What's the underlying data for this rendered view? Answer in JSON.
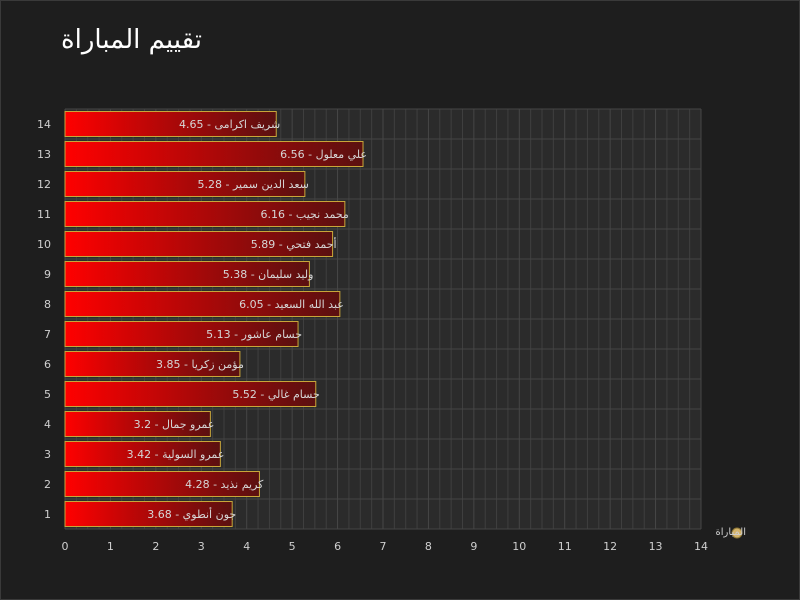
{
  "title": "تقييم المباراة",
  "chart_data": {
    "type": "bar",
    "orientation": "horizontal",
    "title": "تقييم المباراة",
    "categories": [
      "1",
      "2",
      "3",
      "4",
      "5",
      "6",
      "7",
      "8",
      "9",
      "10",
      "11",
      "12",
      "13",
      "14"
    ],
    "players": [
      "جون أنطوي",
      "كريم نذيد",
      "عمرو السولية",
      "عمرو جمال",
      "حسام غالي",
      "مؤمن زكريا",
      "حسام عاشور",
      "عبد الله السعيد",
      "وليد سليمان",
      "أحمد فتحي",
      "محمد نجيب",
      "سعد الدين سمير",
      "علي معلول",
      "شريف اكرامى"
    ],
    "values": [
      3.68,
      4.28,
      3.42,
      3.2,
      5.52,
      3.85,
      5.13,
      6.05,
      5.38,
      5.89,
      6.16,
      5.28,
      6.56,
      4.65
    ],
    "bar_labels": [
      "جون أنطوي - 3.68",
      "كريم نذيد - 4.28",
      "عمرو السولية - 3.42",
      "عمرو جمال - 3.2",
      "حسام غالي - 5.52",
      "مؤمن زكريا - 3.85",
      "حسام عاشور - 5.13",
      "عبد الله السعيد - 6.05",
      "وليد سليمان - 5.38",
      "أحمد فتحي - 5.89",
      "محمد نجيب - 6.16",
      "سعد الدين سمير - 5.28",
      "علي معلول - 6.56",
      "شريف اكرامى - 4.65"
    ],
    "series": [
      {
        "name": "المباراة",
        "values": [
          3.68,
          4.28,
          3.42,
          3.2,
          5.52,
          3.85,
          5.13,
          6.05,
          5.38,
          5.89,
          6.16,
          5.28,
          6.56,
          4.65
        ]
      }
    ],
    "xlim": [
      0,
      14
    ],
    "xticks": [
      0,
      1,
      2,
      3,
      4,
      5,
      6,
      7,
      8,
      9,
      10,
      11,
      12,
      13,
      14
    ],
    "grid": true,
    "legend_position": "right",
    "colors": {
      "bar_start": "#ff0000",
      "bar_end": "#5a1010",
      "bar_border": "#c8a63a",
      "legend_marker": "#d4b36a",
      "plot_bg": "#2b2b2b",
      "grid": "#3f3f3f"
    }
  }
}
